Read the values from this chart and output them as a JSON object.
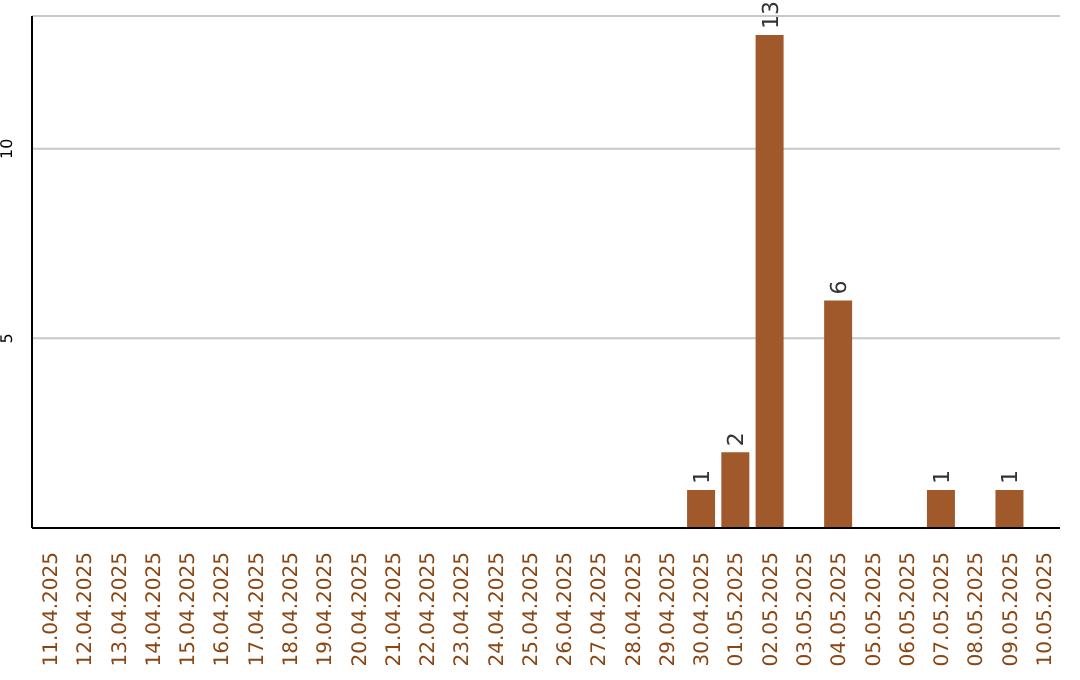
{
  "chart_data": {
    "type": "bar",
    "categories": [
      "11.04.2025",
      "12.04.2025",
      "13.04.2025",
      "14.04.2025",
      "15.04.2025",
      "16.04.2025",
      "17.04.2025",
      "18.04.2025",
      "19.04.2025",
      "20.04.2025",
      "21.04.2025",
      "22.04.2025",
      "23.04.2025",
      "24.04.2025",
      "25.04.2025",
      "26.04.2025",
      "27.04.2025",
      "28.04.2025",
      "29.04.2025",
      "30.04.2025",
      "01.05.2025",
      "02.05.2025",
      "03.05.2025",
      "04.05.2025",
      "05.05.2025",
      "06.05.2025",
      "07.05.2025",
      "08.05.2025",
      "09.05.2025",
      "10.05.2025"
    ],
    "values": [
      null,
      null,
      null,
      null,
      null,
      null,
      null,
      null,
      null,
      null,
      null,
      null,
      null,
      null,
      null,
      null,
      null,
      null,
      null,
      1,
      2,
      13,
      null,
      6,
      null,
      null,
      1,
      null,
      1,
      null
    ],
    "color": "#a0592a",
    "ylim": [
      0,
      13.5
    ],
    "yticks": [
      5,
      10
    ],
    "grid": "y",
    "data_labels": true
  }
}
